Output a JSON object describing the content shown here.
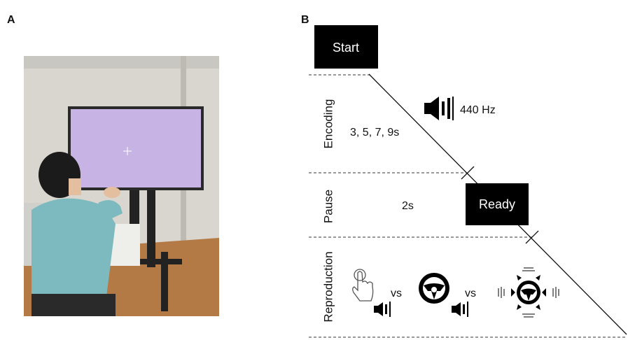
{
  "panel_labels": {
    "a": "A",
    "b": "B"
  },
  "diagram": {
    "start": "Start",
    "encoding": {
      "label": "Encoding",
      "tone": "440 Hz",
      "durations": "3, 5, 7, 9s"
    },
    "pause": {
      "label": "Pause",
      "duration": "2s",
      "ready": "Ready"
    },
    "reproduction": {
      "label": "Reproduction",
      "vs": [
        "vs",
        "vs"
      ]
    }
  }
}
